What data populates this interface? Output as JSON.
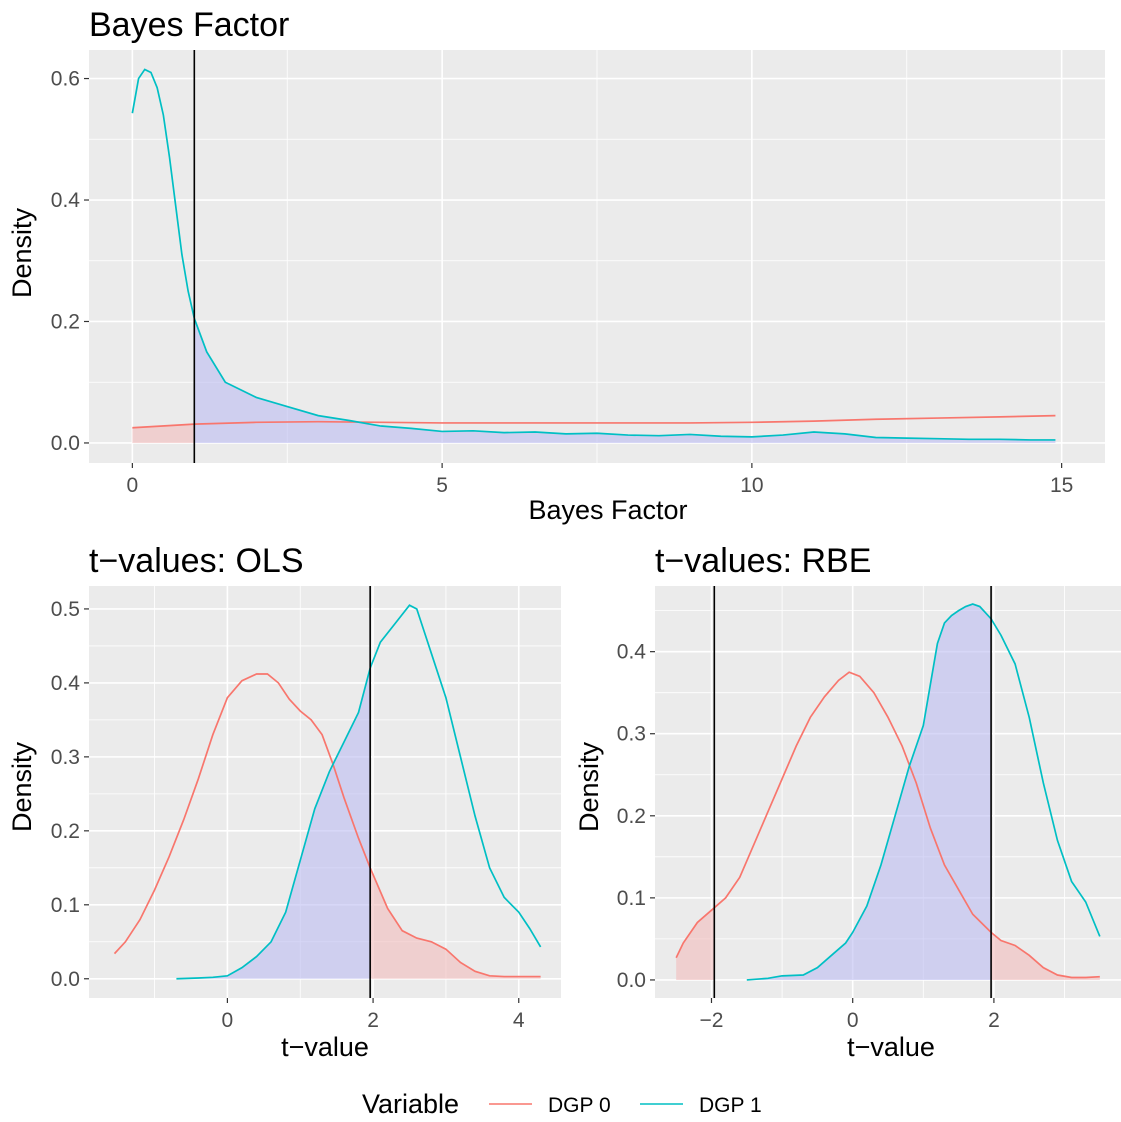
{
  "colors": {
    "dgp0": "#F8766D",
    "dgp1": "#00BFC4",
    "fill0": "#F2BDBD",
    "fill1": "#BDBDF2"
  },
  "legend": {
    "title": "Variable",
    "items": [
      "DGP 0",
      "DGP 1"
    ]
  },
  "chart_data": [
    {
      "id": "bf",
      "type": "area",
      "title": "Bayes Factor",
      "xlabel": "Bayes Factor",
      "ylabel": "Density",
      "xlim": [
        -0.7,
        15.7
      ],
      "ylim": [
        -0.033,
        0.647
      ],
      "xticks": [
        0,
        5,
        10,
        15
      ],
      "yticks": [
        0.0,
        0.2,
        0.4,
        0.6
      ],
      "ytick_labels": [
        "0.0",
        "0.2",
        "0.4",
        "0.6"
      ],
      "vlines": [
        1
      ],
      "series": [
        {
          "name": "DGP 0",
          "shade": [
            0,
            1
          ],
          "points": [
            [
              0,
              0.025
            ],
            [
              1,
              0.031
            ],
            [
              2,
              0.034
            ],
            [
              3,
              0.035
            ],
            [
              4,
              0.034
            ],
            [
              5,
              0.033
            ],
            [
              6,
              0.033
            ],
            [
              7,
              0.033
            ],
            [
              8,
              0.033
            ],
            [
              9,
              0.033
            ],
            [
              10,
              0.034
            ],
            [
              11,
              0.036
            ],
            [
              12,
              0.039
            ],
            [
              13,
              0.041
            ],
            [
              14,
              0.043
            ],
            [
              14.9,
              0.045
            ]
          ]
        },
        {
          "name": "DGP 1",
          "shade": [
            1,
            14.9
          ],
          "points": [
            [
              0,
              0.543
            ],
            [
              0.1,
              0.6
            ],
            [
              0.2,
              0.615
            ],
            [
              0.3,
              0.61
            ],
            [
              0.4,
              0.585
            ],
            [
              0.5,
              0.54
            ],
            [
              0.6,
              0.47
            ],
            [
              0.7,
              0.39
            ],
            [
              0.8,
              0.31
            ],
            [
              0.9,
              0.25
            ],
            [
              1.0,
              0.205
            ],
            [
              1.2,
              0.15
            ],
            [
              1.5,
              0.1
            ],
            [
              2.0,
              0.075
            ],
            [
              2.5,
              0.06
            ],
            [
              3.0,
              0.045
            ],
            [
              3.5,
              0.037
            ],
            [
              4.0,
              0.028
            ],
            [
              4.5,
              0.024
            ],
            [
              5.0,
              0.019
            ],
            [
              5.5,
              0.02
            ],
            [
              6.0,
              0.017
            ],
            [
              6.5,
              0.018
            ],
            [
              7.0,
              0.015
            ],
            [
              7.5,
              0.016
            ],
            [
              8.0,
              0.013
            ],
            [
              8.5,
              0.012
            ],
            [
              9.0,
              0.014
            ],
            [
              9.5,
              0.011
            ],
            [
              10.0,
              0.01
            ],
            [
              10.5,
              0.013
            ],
            [
              11.0,
              0.018
            ],
            [
              11.5,
              0.015
            ],
            [
              12.0,
              0.009
            ],
            [
              12.5,
              0.008
            ],
            [
              13.0,
              0.007
            ],
            [
              13.5,
              0.006
            ],
            [
              14.0,
              0.006
            ],
            [
              14.5,
              0.005
            ],
            [
              14.9,
              0.005
            ]
          ]
        }
      ]
    },
    {
      "id": "ols",
      "type": "area",
      "title": "t−values: OLS",
      "xlabel": "t−value",
      "ylabel": "Density",
      "xlim": [
        -1.9,
        4.58
      ],
      "ylim": [
        -0.026,
        0.531
      ],
      "xticks": [
        0,
        2,
        4
      ],
      "yticks": [
        0.0,
        0.1,
        0.2,
        0.3,
        0.4,
        0.5
      ],
      "ytick_labels": [
        "0.0",
        "0.1",
        "0.2",
        "0.3",
        "0.4",
        "0.5"
      ],
      "vlines": [
        1.96
      ],
      "series": [
        {
          "name": "DGP 0",
          "shade": [
            1.96,
            4.3
          ],
          "points": [
            [
              -1.55,
              0.034
            ],
            [
              -1.4,
              0.05
            ],
            [
              -1.2,
              0.08
            ],
            [
              -1.0,
              0.12
            ],
            [
              -0.8,
              0.165
            ],
            [
              -0.6,
              0.215
            ],
            [
              -0.4,
              0.27
            ],
            [
              -0.2,
              0.33
            ],
            [
              0.0,
              0.38
            ],
            [
              0.2,
              0.403
            ],
            [
              0.4,
              0.412
            ],
            [
              0.55,
              0.412
            ],
            [
              0.7,
              0.4
            ],
            [
              0.85,
              0.378
            ],
            [
              1.0,
              0.362
            ],
            [
              1.15,
              0.35
            ],
            [
              1.3,
              0.33
            ],
            [
              1.45,
              0.29
            ],
            [
              1.6,
              0.245
            ],
            [
              1.8,
              0.19
            ],
            [
              1.96,
              0.15
            ],
            [
              2.2,
              0.095
            ],
            [
              2.4,
              0.065
            ],
            [
              2.6,
              0.055
            ],
            [
              2.8,
              0.05
            ],
            [
              3.0,
              0.04
            ],
            [
              3.2,
              0.022
            ],
            [
              3.4,
              0.01
            ],
            [
              3.6,
              0.004
            ],
            [
              3.8,
              0.003
            ],
            [
              4.0,
              0.003
            ],
            [
              4.3,
              0.003
            ]
          ]
        },
        {
          "name": "DGP 1",
          "shade": [
            -0.7,
            1.96
          ],
          "points": [
            [
              -0.7,
              0.0
            ],
            [
              -0.4,
              0.001
            ],
            [
              -0.2,
              0.002
            ],
            [
              0.0,
              0.004
            ],
            [
              0.2,
              0.015
            ],
            [
              0.4,
              0.03
            ],
            [
              0.6,
              0.05
            ],
            [
              0.8,
              0.09
            ],
            [
              1.0,
              0.16
            ],
            [
              1.2,
              0.23
            ],
            [
              1.4,
              0.28
            ],
            [
              1.6,
              0.32
            ],
            [
              1.8,
              0.36
            ],
            [
              1.96,
              0.42
            ],
            [
              2.1,
              0.455
            ],
            [
              2.3,
              0.48
            ],
            [
              2.5,
              0.505
            ],
            [
              2.6,
              0.5
            ],
            [
              2.7,
              0.47
            ],
            [
              2.8,
              0.44
            ],
            [
              3.0,
              0.38
            ],
            [
              3.2,
              0.3
            ],
            [
              3.4,
              0.22
            ],
            [
              3.6,
              0.15
            ],
            [
              3.8,
              0.11
            ],
            [
              4.0,
              0.09
            ],
            [
              4.15,
              0.068
            ],
            [
              4.3,
              0.043
            ]
          ]
        }
      ]
    },
    {
      "id": "rbe",
      "type": "area",
      "title": "t−values: RBE",
      "xlabel": "t−value",
      "ylabel": "Density",
      "xlim": [
        -2.8,
        3.8
      ],
      "ylim": [
        -0.022,
        0.48
      ],
      "xticks": [
        -2,
        0,
        2
      ],
      "xtick_labels": [
        "−2",
        "0",
        "2"
      ],
      "yticks": [
        0.0,
        0.1,
        0.2,
        0.3,
        0.4
      ],
      "ytick_labels": [
        "0.0",
        "0.1",
        "0.2",
        "0.3",
        "0.4"
      ],
      "vlines": [
        -1.96,
        1.96
      ],
      "series": [
        {
          "name": "DGP 0",
          "shade_out": [
            -1.96,
            1.96
          ],
          "points": [
            [
              -2.5,
              0.027
            ],
            [
              -2.4,
              0.045
            ],
            [
              -2.2,
              0.07
            ],
            [
              -2.0,
              0.085
            ],
            [
              -1.8,
              0.1
            ],
            [
              -1.6,
              0.125
            ],
            [
              -1.4,
              0.165
            ],
            [
              -1.2,
              0.205
            ],
            [
              -1.0,
              0.245
            ],
            [
              -0.8,
              0.285
            ],
            [
              -0.6,
              0.32
            ],
            [
              -0.4,
              0.345
            ],
            [
              -0.2,
              0.365
            ],
            [
              -0.05,
              0.375
            ],
            [
              0.1,
              0.37
            ],
            [
              0.3,
              0.35
            ],
            [
              0.5,
              0.32
            ],
            [
              0.7,
              0.285
            ],
            [
              0.9,
              0.24
            ],
            [
              1.1,
              0.185
            ],
            [
              1.3,
              0.14
            ],
            [
              1.5,
              0.11
            ],
            [
              1.7,
              0.08
            ],
            [
              1.96,
              0.058
            ],
            [
              2.1,
              0.048
            ],
            [
              2.3,
              0.042
            ],
            [
              2.5,
              0.03
            ],
            [
              2.7,
              0.015
            ],
            [
              2.9,
              0.006
            ],
            [
              3.1,
              0.003
            ],
            [
              3.3,
              0.003
            ],
            [
              3.5,
              0.004
            ]
          ]
        },
        {
          "name": "DGP 1",
          "shade": [
            -1.96,
            1.96
          ],
          "points": [
            [
              -1.5,
              0.0
            ],
            [
              -1.2,
              0.002
            ],
            [
              -1.0,
              0.005
            ],
            [
              -0.7,
              0.006
            ],
            [
              -0.5,
              0.015
            ],
            [
              -0.3,
              0.03
            ],
            [
              -0.1,
              0.045
            ],
            [
              0.0,
              0.058
            ],
            [
              0.2,
              0.09
            ],
            [
              0.4,
              0.14
            ],
            [
              0.6,
              0.2
            ],
            [
              0.8,
              0.26
            ],
            [
              1.0,
              0.31
            ],
            [
              1.1,
              0.36
            ],
            [
              1.2,
              0.41
            ],
            [
              1.3,
              0.435
            ],
            [
              1.4,
              0.444
            ],
            [
              1.5,
              0.45
            ],
            [
              1.6,
              0.455
            ],
            [
              1.7,
              0.458
            ],
            [
              1.8,
              0.455
            ],
            [
              1.96,
              0.44
            ],
            [
              2.1,
              0.42
            ],
            [
              2.3,
              0.385
            ],
            [
              2.5,
              0.32
            ],
            [
              2.7,
              0.24
            ],
            [
              2.9,
              0.17
            ],
            [
              3.1,
              0.12
            ],
            [
              3.3,
              0.095
            ],
            [
              3.5,
              0.053
            ]
          ]
        }
      ]
    }
  ]
}
